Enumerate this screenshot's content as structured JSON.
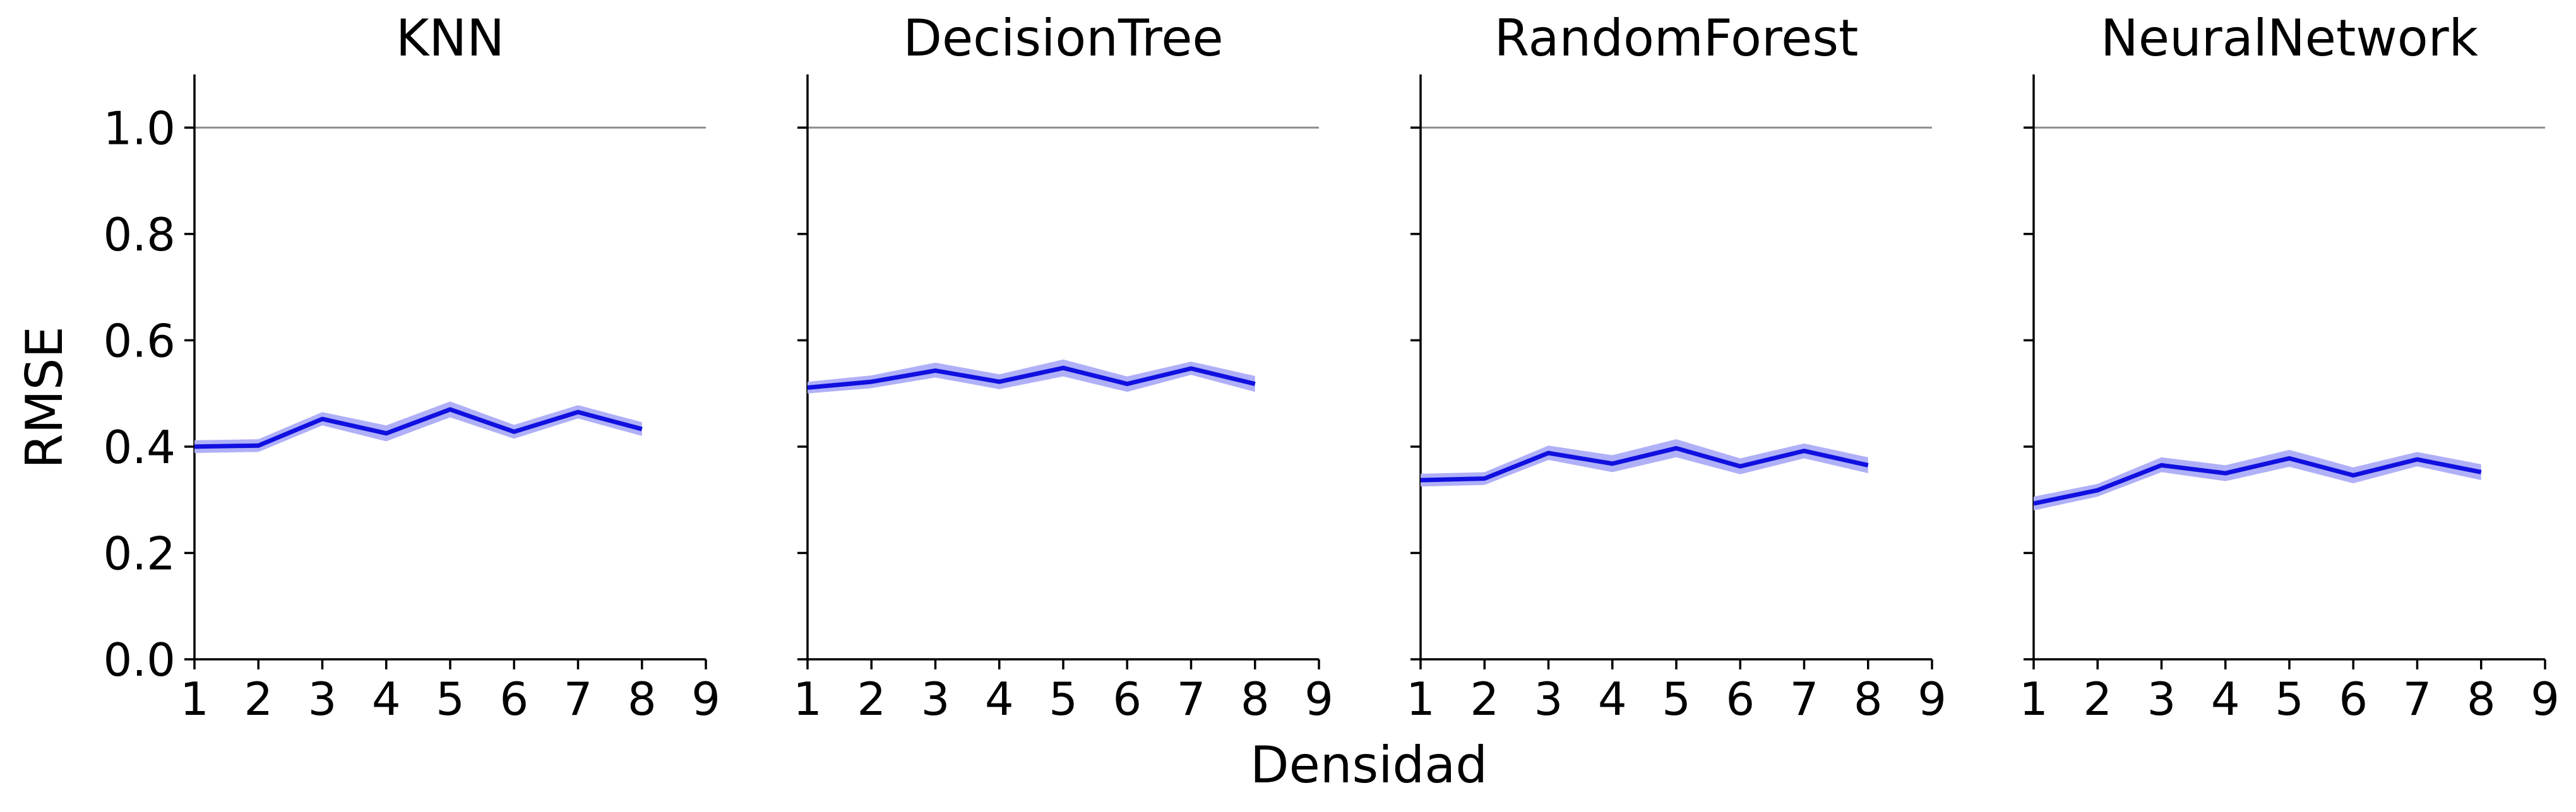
{
  "figure": {
    "ylabel": "RMSE",
    "xlabel": "Densidad"
  },
  "chart_data": [
    {
      "type": "line",
      "title": "KNN",
      "x": [
        1,
        2,
        3,
        4,
        5,
        6,
        7,
        8
      ],
      "series": [
        {
          "values": [
            0.4,
            0.402,
            0.452,
            0.425,
            0.47,
            0.428,
            0.465,
            0.433
          ],
          "lower": [
            0.388,
            0.39,
            0.44,
            0.41,
            0.455,
            0.415,
            0.453,
            0.42
          ],
          "upper": [
            0.412,
            0.414,
            0.465,
            0.44,
            0.485,
            0.441,
            0.478,
            0.446
          ],
          "color": "#1010e0",
          "band_color": "#b0b0f8"
        }
      ],
      "reference_line": 1.0,
      "xlim": [
        1,
        9
      ],
      "ylim": [
        0,
        1.1
      ],
      "xticks": [
        "1",
        "2",
        "3",
        "4",
        "5",
        "6",
        "7",
        "8",
        "9"
      ],
      "yticks": [
        "0.0",
        "0.2",
        "0.4",
        "0.6",
        "0.8",
        "1.0"
      ]
    },
    {
      "type": "line",
      "title": "DecisionTree",
      "x": [
        1,
        2,
        3,
        4,
        5,
        6,
        7,
        8
      ],
      "series": [
        {
          "values": [
            0.511,
            0.522,
            0.543,
            0.522,
            0.548,
            0.518,
            0.547,
            0.518
          ],
          "lower": [
            0.5,
            0.51,
            0.53,
            0.508,
            0.532,
            0.503,
            0.535,
            0.503
          ],
          "upper": [
            0.522,
            0.534,
            0.558,
            0.536,
            0.564,
            0.532,
            0.56,
            0.533
          ],
          "color": "#1010e0",
          "band_color": "#b0b0f8"
        }
      ],
      "reference_line": 1.0,
      "xlim": [
        1,
        9
      ],
      "ylim": [
        0,
        1.1
      ],
      "xticks": [
        "1",
        "2",
        "3",
        "4",
        "5",
        "6",
        "7",
        "8",
        "9"
      ],
      "yticks": [
        "0.0",
        "0.2",
        "0.4",
        "0.6",
        "0.8",
        "1.0"
      ]
    },
    {
      "type": "line",
      "title": "RandomForest",
      "x": [
        1,
        2,
        3,
        4,
        5,
        6,
        7,
        8
      ],
      "series": [
        {
          "values": [
            0.337,
            0.34,
            0.388,
            0.368,
            0.397,
            0.363,
            0.392,
            0.365
          ],
          "lower": [
            0.325,
            0.328,
            0.375,
            0.352,
            0.38,
            0.348,
            0.378,
            0.35
          ],
          "upper": [
            0.349,
            0.352,
            0.402,
            0.384,
            0.414,
            0.378,
            0.406,
            0.38
          ],
          "color": "#1010e0",
          "band_color": "#b0b0f8"
        }
      ],
      "reference_line": 1.0,
      "xlim": [
        1,
        9
      ],
      "ylim": [
        0,
        1.1
      ],
      "xticks": [
        "1",
        "2",
        "3",
        "4",
        "5",
        "6",
        "7",
        "8",
        "9"
      ],
      "yticks": [
        "0.0",
        "0.2",
        "0.4",
        "0.6",
        "0.8",
        "1.0"
      ]
    },
    {
      "type": "line",
      "title": "NeuralNetwork",
      "x": [
        1,
        2,
        3,
        4,
        5,
        6,
        7,
        8
      ],
      "series": [
        {
          "values": [
            0.293,
            0.318,
            0.365,
            0.35,
            0.378,
            0.346,
            0.376,
            0.352
          ],
          "lower": [
            0.28,
            0.306,
            0.352,
            0.335,
            0.362,
            0.331,
            0.363,
            0.337
          ],
          "upper": [
            0.306,
            0.33,
            0.38,
            0.365,
            0.394,
            0.361,
            0.39,
            0.367
          ],
          "color": "#1010e0",
          "band_color": "#b0b0f8"
        }
      ],
      "reference_line": 1.0,
      "xlim": [
        1,
        9
      ],
      "ylim": [
        0,
        1.1
      ],
      "xticks": [
        "1",
        "2",
        "3",
        "4",
        "5",
        "6",
        "7",
        "8",
        "9"
      ],
      "yticks": [
        "0.0",
        "0.2",
        "0.4",
        "0.6",
        "0.8",
        "1.0"
      ]
    }
  ]
}
